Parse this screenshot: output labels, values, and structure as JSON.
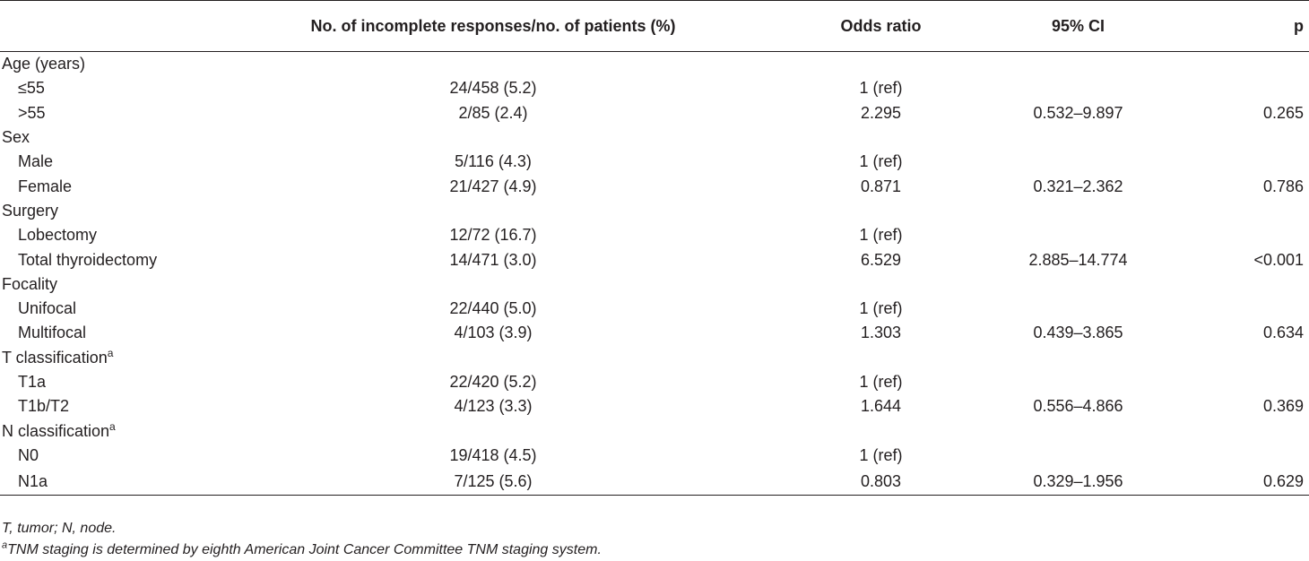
{
  "headers": {
    "label": "",
    "responses": "No. of incomplete responses/no. of patients (%)",
    "odds_ratio": "Odds ratio",
    "ci": "95% CI",
    "p": "p"
  },
  "groups": [
    {
      "title": "Age (years)",
      "sup": "",
      "rows": [
        {
          "label": "≤55",
          "responses": "24/458 (5.2)",
          "odds_ratio": "1 (ref)",
          "ci": "",
          "p": ""
        },
        {
          "label": ">55",
          "responses": "2/85 (2.4)",
          "odds_ratio": "2.295",
          "ci": "0.532–9.897",
          "p": "0.265"
        }
      ]
    },
    {
      "title": "Sex",
      "sup": "",
      "rows": [
        {
          "label": "Male",
          "responses": "5/116 (4.3)",
          "odds_ratio": "1 (ref)",
          "ci": "",
          "p": ""
        },
        {
          "label": "Female",
          "responses": "21/427 (4.9)",
          "odds_ratio": "0.871",
          "ci": "0.321–2.362",
          "p": "0.786"
        }
      ]
    },
    {
      "title": "Surgery",
      "sup": "",
      "rows": [
        {
          "label": "Lobectomy",
          "responses": "12/72 (16.7)",
          "odds_ratio": "1 (ref)",
          "ci": "",
          "p": ""
        },
        {
          "label": "Total thyroidectomy",
          "responses": "14/471 (3.0)",
          "odds_ratio": "6.529",
          "ci": "2.885–14.774",
          "p": "<0.001"
        }
      ]
    },
    {
      "title": "Focality",
      "sup": "",
      "rows": [
        {
          "label": "Unifocal",
          "responses": "22/440 (5.0)",
          "odds_ratio": "1 (ref)",
          "ci": "",
          "p": ""
        },
        {
          "label": "Multifocal",
          "responses": "4/103 (3.9)",
          "odds_ratio": "1.303",
          "ci": "0.439–3.865",
          "p": "0.634"
        }
      ]
    },
    {
      "title": "T classification",
      "sup": "a",
      "rows": [
        {
          "label": "T1a",
          "responses": "22/420 (5.2)",
          "odds_ratio": "1 (ref)",
          "ci": "",
          "p": ""
        },
        {
          "label": "T1b/T2",
          "responses": "4/123 (3.3)",
          "odds_ratio": "1.644",
          "ci": "0.556–4.866",
          "p": "0.369"
        }
      ]
    },
    {
      "title": "N classification",
      "sup": "a",
      "rows": [
        {
          "label": "N0",
          "responses": "19/418 (4.5)",
          "odds_ratio": "1 (ref)",
          "ci": "",
          "p": ""
        },
        {
          "label": "N1a",
          "responses": "7/125 (5.6)",
          "odds_ratio": "0.803",
          "ci": "0.329–1.956",
          "p": "0.629"
        }
      ]
    }
  ],
  "footnotes": {
    "abbrev": "T, tumor; N, node.",
    "a_marker": "a",
    "a_text": "TNM staging is determined by eighth American Joint Cancer Committee TNM staging system."
  }
}
